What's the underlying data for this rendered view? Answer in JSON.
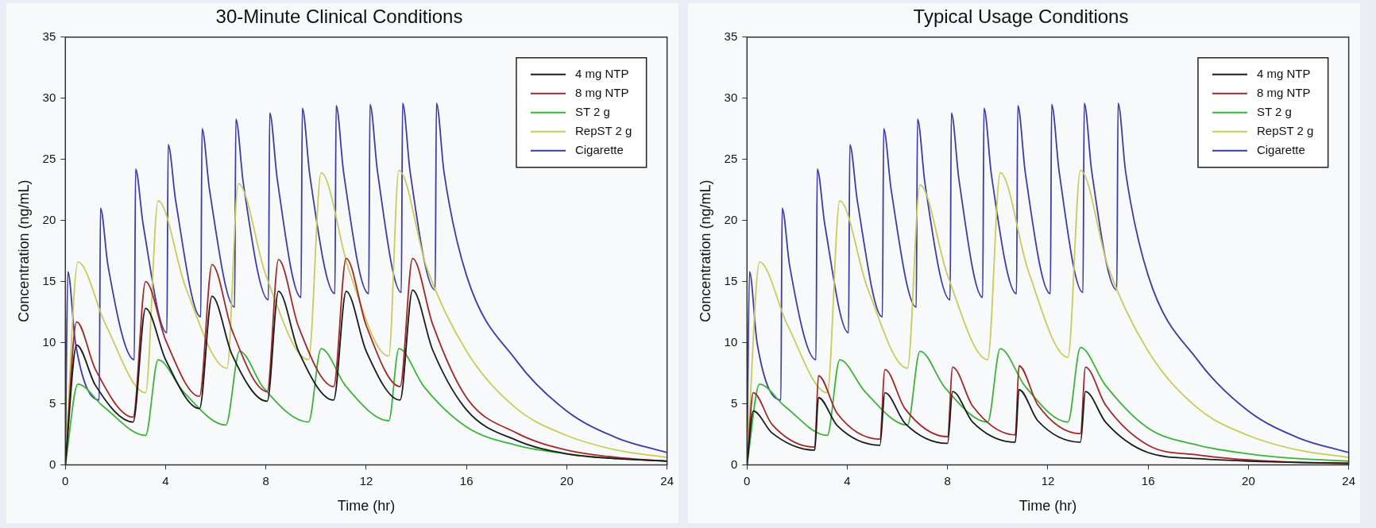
{
  "chart_data": [
    {
      "type": "line",
      "title": "30-Minute Clinical Conditions",
      "xlabel": "Time (hr)",
      "ylabel": "Concentration (ng/mL)",
      "xlim": [
        0,
        24
      ],
      "xticks": [
        0,
        4,
        8,
        12,
        16,
        20,
        24
      ],
      "ylim": [
        0,
        35
      ],
      "yticks": [
        0,
        5,
        10,
        15,
        20,
        25,
        30,
        35
      ],
      "grid": false,
      "legend": "top right",
      "marker": "none",
      "line_style": "solid",
      "series": [
        {
          "name": "4 mg NTP",
          "color": "#1a1a1a",
          "x": [
            0,
            0.45,
            1.2,
            2.7,
            3.2,
            4.0,
            5.35,
            5.85,
            6.65,
            8.05,
            8.5,
            9.3,
            10.7,
            11.2,
            12.0,
            13.35,
            13.85,
            14.65,
            16,
            18,
            20,
            22,
            24
          ],
          "values": [
            0,
            9.8,
            6.5,
            3.5,
            12.8,
            8.6,
            4.6,
            13.8,
            9.0,
            5.2,
            14.2,
            9.3,
            5.3,
            14.2,
            9.3,
            5.3,
            14.3,
            9.4,
            4.5,
            2.0,
            0.9,
            0.5,
            0.3
          ]
        },
        {
          "name": "8 mg NTP",
          "color": "#a0282a",
          "x": [
            0,
            0.45,
            1.2,
            2.7,
            3.2,
            4.0,
            5.35,
            5.85,
            6.65,
            8.05,
            8.5,
            9.3,
            10.7,
            11.2,
            12.0,
            13.35,
            13.85,
            14.65,
            16,
            18,
            20,
            22,
            24
          ],
          "values": [
            0,
            11.7,
            7.8,
            3.9,
            15.0,
            10.2,
            5.6,
            16.4,
            11.0,
            6.0,
            16.8,
            11.3,
            6.4,
            16.9,
            11.4,
            6.4,
            16.9,
            11.5,
            5.5,
            2.6,
            1.2,
            0.6,
            0.3
          ]
        },
        {
          "name": "ST 2 g",
          "color": "#3cb43c",
          "x": [
            0,
            0.5,
            1.5,
            3.2,
            3.7,
            4.7,
            6.4,
            6.95,
            7.9,
            9.7,
            10.2,
            11.2,
            12.9,
            13.3,
            14.3,
            16,
            18,
            20,
            22,
            24
          ],
          "values": [
            0,
            6.6,
            4.8,
            2.4,
            8.6,
            6.0,
            3.25,
            9.3,
            6.3,
            3.5,
            9.5,
            6.4,
            3.6,
            9.5,
            6.4,
            3.1,
            1.6,
            0.9,
            0.5,
            0.3
          ]
        },
        {
          "name": "RepST 2 g",
          "color": "#c8cc5a",
          "x": [
            0,
            0.5,
            1.6,
            3.2,
            3.7,
            4.8,
            6.45,
            6.9,
            8.0,
            9.7,
            10.2,
            11.3,
            12.9,
            13.3,
            14.4,
            16,
            18,
            20,
            22,
            24
          ],
          "values": [
            0,
            16.6,
            11.5,
            5.9,
            21.6,
            14.5,
            7.9,
            23.0,
            15.5,
            8.6,
            23.9,
            16.0,
            8.9,
            24.1,
            16.2,
            9.3,
            4.6,
            2.4,
            1.2,
            0.6
          ]
        },
        {
          "name": "Cigarette",
          "color": "#3c3ca8",
          "x": [
            0,
            0.1,
            0.4,
            1.35,
            1.4,
            1.7,
            2.75,
            2.8,
            3.1,
            4.05,
            4.1,
            4.4,
            5.4,
            5.45,
            5.75,
            6.75,
            6.8,
            7.1,
            8.1,
            8.15,
            8.45,
            9.4,
            9.45,
            9.75,
            10.75,
            10.8,
            11.1,
            12.1,
            12.15,
            12.45,
            13.4,
            13.45,
            13.75,
            14.75,
            14.8,
            15.1,
            16,
            18,
            20,
            22,
            24
          ],
          "values": [
            0,
            15.8,
            10.0,
            5.3,
            21.0,
            16.3,
            8.6,
            24.2,
            19.7,
            10.8,
            26.2,
            21.6,
            12.1,
            27.5,
            22.5,
            12.9,
            28.3,
            23.0,
            13.5,
            28.8,
            23.4,
            13.7,
            29.2,
            23.7,
            14.0,
            29.4,
            23.9,
            14.0,
            29.5,
            24.0,
            14.1,
            29.6,
            24.0,
            14.3,
            29.6,
            24.0,
            15.5,
            8.5,
            4.4,
            2.2,
            1.0
          ]
        }
      ]
    },
    {
      "type": "line",
      "title": "Typical Usage Conditions",
      "xlabel": "Time (hr)",
      "ylabel": "Concentration (ng/mL)",
      "xlim": [
        0,
        24
      ],
      "xticks": [
        0,
        4,
        8,
        12,
        16,
        20,
        24
      ],
      "ylim": [
        0,
        35
      ],
      "yticks": [
        0,
        5,
        10,
        15,
        20,
        25,
        30,
        35
      ],
      "grid": false,
      "legend": "top right",
      "marker": "none",
      "line_style": "solid",
      "series": [
        {
          "name": "4 mg NTP",
          "color": "#1a1a1a",
          "x": [
            0,
            0.25,
            1.0,
            2.7,
            2.85,
            3.6,
            5.3,
            5.5,
            6.3,
            8.0,
            8.2,
            9.0,
            10.7,
            10.85,
            11.6,
            13.3,
            13.5,
            14.3,
            16,
            18,
            20,
            22,
            24
          ],
          "values": [
            0,
            4.4,
            2.6,
            1.2,
            5.5,
            3.2,
            1.6,
            5.9,
            3.4,
            1.75,
            6.0,
            3.5,
            1.85,
            6.15,
            3.6,
            1.85,
            6.0,
            3.5,
            1.0,
            0.5,
            0.3,
            0.2,
            0.1
          ]
        },
        {
          "name": "8 mg NTP",
          "color": "#a0282a",
          "x": [
            0,
            0.25,
            1.0,
            2.7,
            2.85,
            3.6,
            5.3,
            5.5,
            6.3,
            8.0,
            8.2,
            9.0,
            10.7,
            10.85,
            11.6,
            13.3,
            13.5,
            14.3,
            16,
            18,
            20,
            22,
            24
          ],
          "values": [
            0,
            5.9,
            3.3,
            1.45,
            7.3,
            4.2,
            2.1,
            7.8,
            4.6,
            2.3,
            8.0,
            4.8,
            2.45,
            8.1,
            4.9,
            2.55,
            8.0,
            4.9,
            1.6,
            0.8,
            0.4,
            0.2,
            0.15
          ]
        },
        {
          "name": "ST 2 g",
          "color": "#3cb43c",
          "x": [
            0,
            0.5,
            1.5,
            3.2,
            3.7,
            4.7,
            6.4,
            6.9,
            7.9,
            9.6,
            10.1,
            11.1,
            12.8,
            13.3,
            14.3,
            16,
            18,
            20,
            22,
            24
          ],
          "values": [
            0,
            6.6,
            4.8,
            2.4,
            8.6,
            6.0,
            3.25,
            9.3,
            6.3,
            3.5,
            9.5,
            6.4,
            3.5,
            9.6,
            6.5,
            3.0,
            1.6,
            0.9,
            0.5,
            0.3
          ]
        },
        {
          "name": "RepST 2 g",
          "color": "#c8cc5a",
          "x": [
            0,
            0.5,
            1.6,
            3.2,
            3.7,
            4.8,
            6.4,
            6.9,
            8.0,
            9.6,
            10.1,
            11.2,
            12.8,
            13.3,
            14.4,
            16,
            18,
            20,
            22,
            24
          ],
          "values": [
            0,
            16.6,
            11.5,
            5.9,
            21.6,
            14.5,
            7.9,
            22.9,
            15.5,
            8.6,
            23.9,
            16.0,
            8.8,
            24.1,
            16.2,
            9.3,
            4.6,
            2.4,
            1.2,
            0.6
          ]
        },
        {
          "name": "Cigarette",
          "color": "#3c3ca8",
          "x": [
            0,
            0.1,
            0.4,
            1.35,
            1.4,
            1.7,
            2.75,
            2.8,
            3.1,
            4.05,
            4.1,
            4.4,
            5.4,
            5.45,
            5.75,
            6.75,
            6.8,
            7.1,
            8.1,
            8.15,
            8.45,
            9.4,
            9.45,
            9.75,
            10.75,
            10.8,
            11.1,
            12.1,
            12.15,
            12.45,
            13.4,
            13.45,
            13.75,
            14.75,
            14.8,
            15.1,
            16,
            18,
            20,
            22,
            24
          ],
          "values": [
            0,
            15.8,
            10.0,
            5.3,
            21.0,
            16.3,
            8.6,
            24.2,
            19.7,
            10.8,
            26.2,
            21.6,
            12.1,
            27.5,
            22.5,
            12.9,
            28.3,
            23.0,
            13.5,
            28.8,
            23.4,
            13.7,
            29.2,
            23.7,
            14.0,
            29.4,
            23.9,
            14.0,
            29.5,
            24.0,
            14.1,
            29.6,
            24.0,
            14.3,
            29.6,
            24.0,
            15.5,
            8.5,
            4.4,
            2.2,
            1.0
          ]
        }
      ]
    }
  ]
}
